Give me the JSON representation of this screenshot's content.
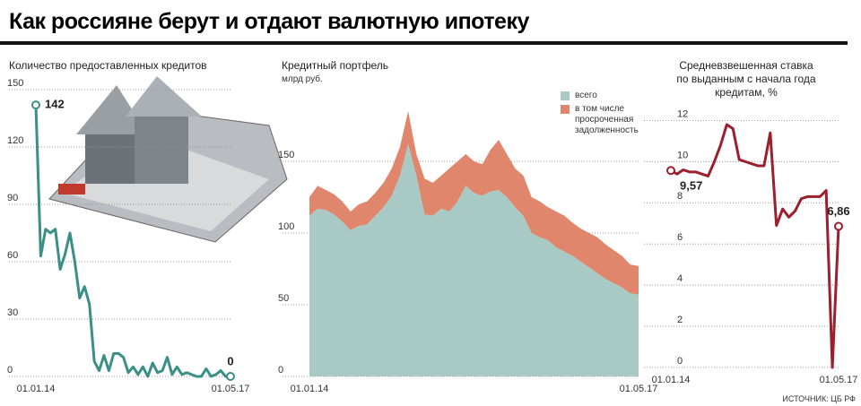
{
  "title": "Как россияне берут и отдают валютную ипотеку",
  "source": "ИСТОЧНИК: ЦБ РФ",
  "chart_data": [
    {
      "type": "line",
      "title": "Количество предоставленных кредитов",
      "categories": [
        "01.01.14",
        null,
        null,
        null,
        null,
        null,
        null,
        null,
        null,
        null,
        null,
        null,
        null,
        null,
        null,
        null,
        null,
        null,
        null,
        null,
        null,
        null,
        null,
        null,
        null,
        null,
        null,
        null,
        null,
        null,
        null,
        null,
        null,
        null,
        null,
        null,
        null,
        null,
        null,
        null,
        "01.05.17"
      ],
      "series": [
        {
          "name": null,
          "color": "#3a8f86",
          "values": [
            142,
            63,
            77,
            75,
            77,
            56,
            64,
            75,
            60,
            41,
            47,
            38,
            8,
            3,
            11,
            3,
            12,
            12,
            10,
            2,
            5,
            1,
            5,
            0,
            7,
            2,
            3,
            10,
            1,
            5,
            1,
            2,
            1,
            0,
            0,
            4,
            0,
            1,
            3,
            0,
            0
          ],
          "value_labels": [
            "142",
            null,
            null,
            null,
            null,
            null,
            null,
            null,
            null,
            null,
            null,
            null,
            null,
            null,
            null,
            null,
            null,
            null,
            null,
            null,
            null,
            null,
            null,
            null,
            null,
            null,
            null,
            null,
            null,
            null,
            null,
            null,
            null,
            null,
            null,
            null,
            null,
            null,
            null,
            null,
            "0"
          ]
        }
      ],
      "ylim": [
        0,
        150
      ],
      "yticks": [
        0,
        30,
        60,
        90,
        120,
        150
      ],
      "grid": true
    },
    {
      "type": "area",
      "title": "Кредитный портфель",
      "subtitle": "млрд руб.",
      "categories": [
        "01.01.14",
        null,
        null,
        null,
        null,
        null,
        null,
        null,
        null,
        null,
        null,
        null,
        null,
        null,
        null,
        null,
        null,
        null,
        null,
        null,
        null,
        null,
        null,
        null,
        null,
        null,
        null,
        null,
        null,
        null,
        null,
        null,
        null,
        null,
        null,
        null,
        null,
        null,
        null,
        null,
        "01.05.17"
      ],
      "series": [
        {
          "name": "всего",
          "color": "#a9c9c4",
          "values": [
            112,
            117,
            116,
            113,
            108,
            102,
            105,
            106,
            112,
            118,
            126,
            140,
            162,
            140,
            113,
            112,
            117,
            115,
            122,
            133,
            128,
            126,
            129,
            130,
            125,
            118,
            112,
            100,
            97,
            95,
            90,
            87,
            84,
            80,
            76,
            72,
            68,
            65,
            62,
            58,
            57
          ]
        },
        {
          "name": "в том числе просроченная задолженность",
          "color": "#e0866c",
          "values": [
            13,
            16,
            14,
            14,
            14,
            13,
            15,
            16,
            16,
            17,
            19,
            20,
            23,
            15,
            25,
            23,
            23,
            30,
            28,
            22,
            22,
            22,
            29,
            35,
            30,
            27,
            28,
            25,
            25,
            23,
            25,
            25,
            23,
            23,
            24,
            25,
            24,
            23,
            22,
            20,
            20
          ]
        }
      ],
      "stacked": true,
      "ylim": [
        0,
        200
      ],
      "yticks": [
        0,
        50,
        100,
        150
      ],
      "grid": true
    },
    {
      "type": "line",
      "title": "Средневзвешенная ставка по выданным с начала года кредитам, %",
      "categories": [
        "01.01.14",
        null,
        null,
        null,
        null,
        null,
        null,
        null,
        null,
        null,
        null,
        null,
        null,
        null,
        null,
        null,
        null,
        null,
        null,
        null,
        null,
        null,
        null,
        null,
        null,
        null,
        null,
        "01.05.17"
      ],
      "series": [
        {
          "name": null,
          "color": "#9c1f2e",
          "values": [
            9.57,
            9.4,
            9.6,
            9.5,
            9.5,
            9.4,
            9.3,
            10.0,
            10.8,
            11.8,
            11.6,
            10.1,
            10.0,
            9.9,
            9.8,
            9.8,
            11.4,
            6.9,
            7.7,
            7.3,
            7.6,
            8.2,
            8.3,
            8.3,
            8.3,
            8.6,
            0,
            6.86
          ],
          "value_labels": [
            "9,57",
            null,
            null,
            null,
            null,
            null,
            null,
            null,
            null,
            null,
            null,
            null,
            null,
            null,
            null,
            null,
            null,
            null,
            null,
            null,
            null,
            null,
            null,
            null,
            null,
            null,
            null,
            "6,86"
          ]
        }
      ],
      "ylim": [
        0,
        13.5
      ],
      "yticks": [
        0,
        2,
        4,
        6,
        8,
        10,
        12
      ],
      "grid": true
    }
  ]
}
